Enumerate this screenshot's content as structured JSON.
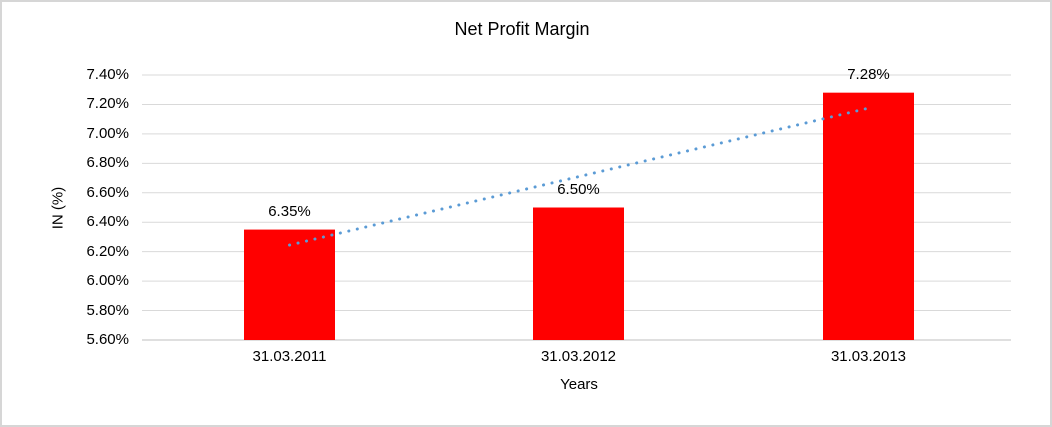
{
  "chart_data": {
    "type": "bar",
    "title": "Net Profit Margin",
    "xlabel": "Years",
    "ylabel": "IN (%)",
    "categories": [
      "31.03.2011",
      "31.03.2012",
      "31.03.2013"
    ],
    "series": [
      {
        "name": "Net Profit Margin",
        "values": [
          6.35,
          6.5,
          7.28
        ]
      }
    ],
    "data_labels": [
      "6.35%",
      "6.50%",
      "7.28%"
    ],
    "ylim": [
      5.6,
      7.4
    ],
    "yticks": [
      5.6,
      5.8,
      6.0,
      6.2,
      6.4,
      6.6,
      6.8,
      7.0,
      7.2,
      7.4
    ],
    "ytick_labels": [
      "5.60%",
      "5.80%",
      "6.00%",
      "6.20%",
      "6.40%",
      "6.60%",
      "6.80%",
      "7.00%",
      "7.20%",
      "7.40%"
    ],
    "grid": true,
    "legend_position": "none",
    "bar_color": "#FF0000",
    "gridline_color": "#D9D9D9",
    "axis_line_color": "#BFBFBF",
    "text_color": "#000000",
    "frame_border_color": "#D6D6D6",
    "trendline": {
      "type": "linear",
      "line_style": "dotted",
      "color": "#5B9BD5",
      "endpoints": [
        6.245,
        7.175
      ]
    }
  }
}
